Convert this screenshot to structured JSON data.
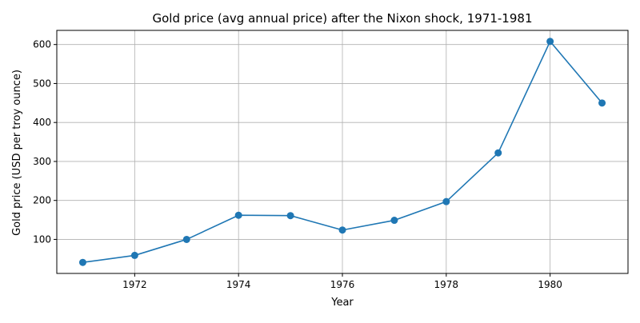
{
  "chart_data": {
    "type": "line",
    "title": "Gold price (avg annual price) after the Nixon shock, 1971-1981",
    "xlabel": "Year",
    "ylabel": "Gold price (USD per troy ounce)",
    "x": [
      1971,
      1972,
      1973,
      1974,
      1975,
      1976,
      1977,
      1978,
      1979,
      1980,
      1981
    ],
    "series": [
      {
        "values": [
          41,
          59,
          100,
          162,
          161,
          124,
          149,
          197,
          322,
          608,
          450
        ],
        "color": "#1f77b4"
      }
    ],
    "xlim": [
      1970.5,
      1981.5
    ],
    "ylim": [
      12.7,
      636.3
    ],
    "xticks": [
      1972,
      1974,
      1976,
      1978,
      1980
    ],
    "yticks": [
      100,
      200,
      300,
      400,
      500,
      600
    ],
    "grid": true,
    "markers": "circle"
  }
}
